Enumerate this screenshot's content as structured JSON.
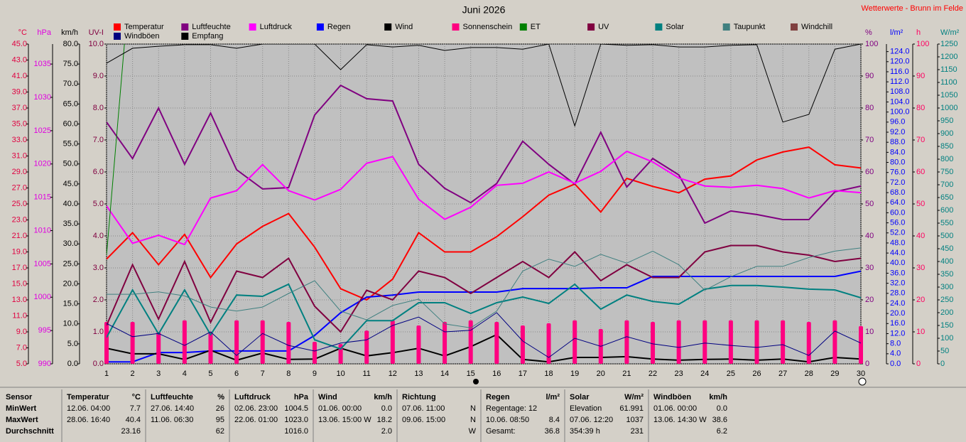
{
  "chart_data": {
    "type": "line",
    "title": "Juni 2026",
    "subtitle": "Wetterwerte - Brunn im Felde",
    "categories": [
      1,
      2,
      3,
      4,
      5,
      6,
      7,
      8,
      9,
      10,
      11,
      12,
      13,
      14,
      15,
      16,
      17,
      18,
      19,
      20,
      21,
      22,
      23,
      24,
      25,
      26,
      27,
      28,
      29,
      30
    ],
    "axes": [
      {
        "label": "°C",
        "color": "#e00040",
        "side": "left",
        "lim": [
          5,
          45
        ],
        "ticks": [
          {
            "value": 5,
            "label": "5.0"
          },
          {
            "value": 7,
            "label": "7.0"
          },
          {
            "value": 9,
            "label": "9.0"
          },
          {
            "value": 11,
            "label": "11.0"
          },
          {
            "value": 13,
            "label": "13.0"
          },
          {
            "value": 15,
            "label": "15.0"
          },
          {
            "value": 17,
            "label": "17.0"
          },
          {
            "value": 19,
            "label": "19.0"
          },
          {
            "value": 21,
            "label": "21.0"
          },
          {
            "value": 23,
            "label": "23.0"
          },
          {
            "value": 25,
            "label": "25.0"
          },
          {
            "value": 27,
            "label": "27.0"
          },
          {
            "value": 29,
            "label": "29.0"
          },
          {
            "value": 31,
            "label": "31.0"
          },
          {
            "value": 33,
            "label": "33.0"
          },
          {
            "value": 35,
            "label": "35.0"
          },
          {
            "value": 37,
            "label": "37.0"
          },
          {
            "value": 39,
            "label": "39.0"
          },
          {
            "value": 41,
            "label": "41.0"
          },
          {
            "value": 43,
            "label": "43.0"
          },
          {
            "value": 45,
            "label": "45.0"
          }
        ]
      },
      {
        "label": "hPa",
        "color": "#e000e0",
        "side": "left",
        "lim": [
          990,
          1038
        ],
        "ticks": [
          990,
          995,
          1000,
          1005,
          1010,
          1015,
          1020,
          1025,
          1030,
          1035
        ]
      },
      {
        "label": "km/h",
        "color": "#000000",
        "side": "left",
        "lim": [
          0,
          80
        ],
        "ticks": [
          {
            "value": 0,
            "label": "0.0"
          },
          {
            "value": 5,
            "label": "5.0"
          },
          {
            "value": 10,
            "label": "10.0"
          },
          {
            "value": 15,
            "label": "15.0"
          },
          {
            "value": 20,
            "label": "20.0"
          },
          {
            "value": 25,
            "label": "25.0"
          },
          {
            "value": 30,
            "label": "30.0"
          },
          {
            "value": 35,
            "label": "35.0"
          },
          {
            "value": 40,
            "label": "40.0"
          },
          {
            "value": 45,
            "label": "45.0"
          },
          {
            "value": 50,
            "label": "50.0"
          },
          {
            "value": 55,
            "label": "55.0"
          },
          {
            "value": 60,
            "label": "60.0"
          },
          {
            "value": 65,
            "label": "65.0"
          },
          {
            "value": 70,
            "label": "70.0"
          },
          {
            "value": 75,
            "label": "75.0"
          },
          {
            "value": 80,
            "label": "80.0"
          }
        ]
      },
      {
        "label": "UV-I",
        "color": "#800040",
        "side": "left",
        "grid": true,
        "lim": [
          0,
          10
        ],
        "ticks": [
          {
            "value": 0,
            "label": "0.0"
          },
          {
            "value": 1,
            "label": "1.0"
          },
          {
            "value": 2,
            "label": "2.0"
          },
          {
            "value": 3,
            "label": "3.0"
          },
          {
            "value": 4,
            "label": "4.0"
          },
          {
            "value": 5,
            "label": "5.0"
          },
          {
            "value": 6,
            "label": "6.0"
          },
          {
            "value": 7,
            "label": "7.0"
          },
          {
            "value": 8,
            "label": "8.0"
          },
          {
            "value": 9,
            "label": "9.0"
          },
          {
            "value": 10,
            "label": "10.0"
          }
        ]
      },
      {
        "label": "%",
        "color": "#800080",
        "side": "right",
        "lim": [
          0,
          100
        ],
        "ticks": [
          0,
          10,
          20,
          30,
          40,
          50,
          60,
          70,
          80,
          90,
          100
        ]
      },
      {
        "label": "l/m²",
        "color": "#0000ff",
        "side": "right",
        "lim": [
          0,
          127
        ],
        "ticks": [
          {
            "value": 0,
            "label": "0.0"
          },
          {
            "value": 4,
            "label": "4.0"
          },
          {
            "value": 8,
            "label": "8.0"
          },
          {
            "value": 12,
            "label": "12.0"
          },
          {
            "value": 16,
            "label": "16.0"
          },
          {
            "value": 20,
            "label": "20.0"
          },
          {
            "value": 24,
            "label": "24.0"
          },
          {
            "value": 28,
            "label": "28.0"
          },
          {
            "value": 32,
            "label": "32.0"
          },
          {
            "value": 36,
            "label": "36.0"
          },
          {
            "value": 40,
            "label": "40.0"
          },
          {
            "value": 44,
            "label": "44.0"
          },
          {
            "value": 48,
            "label": "48.0"
          },
          {
            "value": 52,
            "label": "52.0"
          },
          {
            "value": 56,
            "label": "56.0"
          },
          {
            "value": 60,
            "label": "60.0"
          },
          {
            "value": 64,
            "label": "64.0"
          },
          {
            "value": 68,
            "label": "68.0"
          },
          {
            "value": 72,
            "label": "72.0"
          },
          {
            "value": 76,
            "label": "76.0"
          },
          {
            "value": 80,
            "label": "80.0"
          },
          {
            "value": 84,
            "label": "84.0"
          },
          {
            "value": 88,
            "label": "88.0"
          },
          {
            "value": 92,
            "label": "92.0"
          },
          {
            "value": 96,
            "label": "96.0"
          },
          {
            "value": 100,
            "label": "100.0"
          },
          {
            "value": 104,
            "label": "104.0"
          },
          {
            "value": 108,
            "label": "108.0"
          },
          {
            "value": 112,
            "label": "112.0"
          },
          {
            "value": 116,
            "label": "116.0"
          },
          {
            "value": 120,
            "label": "120.0"
          },
          {
            "value": 124,
            "label": "124.0"
          }
        ]
      },
      {
        "label": "h",
        "color": "#ff0060",
        "side": "right",
        "lim": [
          0,
          100
        ],
        "ticks": [
          0,
          10,
          20,
          30,
          40,
          50,
          60,
          70,
          80,
          90,
          100
        ]
      },
      {
        "label": "W/m²",
        "color": "#008080",
        "side": "right",
        "lim": [
          0,
          1250
        ],
        "ticks": [
          0,
          50,
          100,
          150,
          200,
          250,
          300,
          350,
          400,
          450,
          500,
          550,
          600,
          650,
          700,
          750,
          800,
          850,
          900,
          950,
          1000,
          1050,
          1100,
          1150,
          1200,
          1250
        ]
      }
    ],
    "series": [
      {
        "name": "Temperatur",
        "color": "#ff0000",
        "axis": 0,
        "values": [
          18.1,
          21.4,
          17.4,
          21.2,
          15.8,
          20.0,
          22.2,
          23.8,
          19.6,
          14.4,
          13.0,
          15.6,
          21.4,
          19.0,
          19.0,
          20.9,
          23.4,
          26.1,
          27.5,
          24.0,
          28.2,
          27.2,
          26.4,
          28.1,
          28.5,
          30.5,
          31.5,
          32.1,
          29.9,
          29.5
        ]
      },
      {
        "name": "Luftfeuchte",
        "color": "#800080",
        "axis": 4,
        "values": [
          75.6,
          64.2,
          80.0,
          62.4,
          78.4,
          60.7,
          54.7,
          55.1,
          77.8,
          87.1,
          82.9,
          82.2,
          62.4,
          54.9,
          50.4,
          56.4,
          69.6,
          62.4,
          56.2,
          72.4,
          55.3,
          64.2,
          59.1,
          44.0,
          47.8,
          46.7,
          45.1,
          45.1,
          53.8,
          55.6
        ]
      },
      {
        "name": "Luftdruck",
        "color": "#ff00ff",
        "axis": 1,
        "values": [
          1013.7,
          1008.1,
          1009.3,
          1007.9,
          1014.9,
          1016.0,
          1019.9,
          1016.0,
          1014.6,
          1016.2,
          1020.1,
          1021.1,
          1014.7,
          1011.7,
          1013.5,
          1016.8,
          1017.1,
          1018.8,
          1017.1,
          1018.9,
          1021.9,
          1020.3,
          1017.9,
          1016.7,
          1016.5,
          1016.8,
          1016.3,
          1014.9,
          1016.0,
          1015.7
        ]
      },
      {
        "name": "Regen",
        "color": "#0000ff",
        "axis": 5,
        "values": [
          0.8,
          0.8,
          4.5,
          4.5,
          5.1,
          5.1,
          5.1,
          5.1,
          11.3,
          20.3,
          26.5,
          27.3,
          28.5,
          28.5,
          28.5,
          28.5,
          29.9,
          29.9,
          29.9,
          30.2,
          30.2,
          34.7,
          34.7,
          34.7,
          34.7,
          34.7,
          34.7,
          34.7,
          34.7,
          36.8
        ]
      },
      {
        "name": "Wind",
        "color": "#000000",
        "axis": 2,
        "values": [
          3.9,
          2.5,
          2.5,
          1.1,
          3.4,
          0.9,
          2.7,
          1.1,
          1.2,
          3.9,
          2.0,
          2.8,
          3.9,
          2.0,
          4.3,
          7.3,
          1.1,
          0.5,
          1.6,
          1.6,
          1.8,
          1.2,
          0.9,
          1.1,
          1.2,
          0.9,
          1.2,
          0.5,
          1.6,
          1.2
        ]
      },
      {
        "name": "Sonnenschein",
        "color": "#ff0080",
        "axis": 6,
        "kind": "bar",
        "values": [
          13.1,
          13.1,
          10.0,
          13.6,
          10.0,
          13.6,
          13.6,
          13.1,
          6.9,
          6.2,
          10.4,
          13.6,
          12.0,
          13.1,
          13.6,
          13.1,
          12.0,
          12.7,
          13.6,
          10.9,
          13.6,
          13.1,
          13.6,
          13.6,
          13.6,
          13.6,
          13.6,
          13.1,
          13.6,
          11.8
        ]
      },
      {
        "name": "ET",
        "color": "#008000",
        "axis": 4,
        "thin": true,
        "values": [
          34,
          130,
          null,
          null,
          null,
          null,
          null,
          null,
          null,
          null,
          null,
          null,
          null,
          null,
          null,
          null,
          null,
          null,
          null,
          null,
          null,
          null,
          null,
          null,
          null,
          null,
          null,
          null,
          null,
          null
        ]
      },
      {
        "name": "UV",
        "color": "#800040",
        "axis": 3,
        "values": [
          1.2,
          3.1,
          1.4,
          3.2,
          1.3,
          2.9,
          2.7,
          3.3,
          1.8,
          1.0,
          2.3,
          2.0,
          2.9,
          2.7,
          2.2,
          2.7,
          3.2,
          2.7,
          3.5,
          2.6,
          3.1,
          2.7,
          2.7,
          3.5,
          3.7,
          3.7,
          3.5,
          3.4,
          3.2,
          3.3
        ]
      },
      {
        "name": "Solar",
        "color": "#008080",
        "axis": 7,
        "values": [
          103,
          289,
          117,
          289,
          114,
          269,
          264,
          311,
          94,
          58,
          169,
          169,
          239,
          239,
          197,
          239,
          261,
          236,
          311,
          214,
          269,
          244,
          233,
          292,
          306,
          306,
          300,
          292,
          289,
          258
        ]
      },
      {
        "name": "Taupunkt",
        "color": "#408080",
        "axis": 0,
        "thin": true,
        "values": [
          13.7,
          13.7,
          14.0,
          13.5,
          12.1,
          11.6,
          12.1,
          13.8,
          15.4,
          11.6,
          10.5,
          12.3,
          13.1,
          10.0,
          9.5,
          11.6,
          16.6,
          18.1,
          17.2,
          18.7,
          17.6,
          19.1,
          17.4,
          14.2,
          15.9,
          17.2,
          17.2,
          18.3,
          19.1,
          19.5
        ]
      },
      {
        "name": "Windchill",
        "color": "#804040",
        "axis": 0,
        "values": [
          null,
          null,
          null,
          null,
          null,
          null,
          null,
          null,
          null,
          null,
          null,
          null,
          null,
          null,
          null,
          null,
          null,
          null,
          null,
          null,
          null,
          null,
          null,
          null,
          null,
          null,
          null,
          null,
          null,
          null
        ]
      },
      {
        "name": "Windböen",
        "color": "#000080",
        "axis": 2,
        "thin": true,
        "values": [
          10.1,
          6.8,
          7.6,
          4.6,
          8.0,
          2.1,
          7.6,
          4.6,
          3.2,
          5.2,
          6.0,
          9.6,
          11.7,
          8.0,
          8.4,
          12.8,
          5.7,
          1.6,
          6.4,
          4.4,
          6.8,
          5.0,
          4.1,
          5.2,
          4.6,
          4.1,
          4.8,
          2.1,
          8.2,
          5.2
        ]
      },
      {
        "name": "Empfang",
        "color": "#000000",
        "axis": 4,
        "thin": true,
        "values": [
          94.0,
          98.7,
          99.3,
          99.8,
          99.8,
          98.7,
          100,
          100,
          100,
          92.0,
          99.8,
          99.1,
          99.6,
          98.0,
          98.9,
          98.9,
          98.4,
          100,
          74.4,
          100,
          99.6,
          99.8,
          99.1,
          99.1,
          99.6,
          99.8,
          75.6,
          78.0,
          98.4,
          100
        ]
      }
    ]
  },
  "table": {
    "row_labels": [
      "Sensor",
      "MinWert",
      "MaxWert",
      "Durchschnitt"
    ],
    "columns": [
      {
        "name": "Temperatur",
        "unit": "°C",
        "rows": [
          [
            "12.06. 04:00",
            "7.7"
          ],
          [
            "28.06. 16:40",
            "40.4"
          ],
          [
            null,
            "23.16"
          ]
        ]
      },
      {
        "name": "Luftfeuchte",
        "unit": "%",
        "rows": [
          [
            "27.06. 14:40",
            "26"
          ],
          [
            "11.06. 06:30",
            "95"
          ],
          [
            null,
            "62"
          ]
        ]
      },
      {
        "name": "Luftdruck",
        "unit": "hPa",
        "rows": [
          [
            "02.06. 23:00",
            "1004.5"
          ],
          [
            "22.06. 01:00",
            "1023.0"
          ],
          [
            null,
            "1016.0"
          ]
        ]
      },
      {
        "name": "Wind",
        "unit": "km/h",
        "rows": [
          [
            "01.06. 00:00",
            "0.0"
          ],
          [
            "13.06. 15:00 W",
            "18.2"
          ],
          [
            null,
            "2.0"
          ]
        ]
      },
      {
        "name": "Richtung",
        "unit": null,
        "rows": [
          [
            "07.06. 11:00",
            "N"
          ],
          [
            "09.06. 15:00",
            "N"
          ],
          [
            null,
            "W"
          ]
        ]
      },
      {
        "name": "Regen",
        "unit": "l/m²",
        "rows": [
          [
            "Regentage: 12",
            null
          ],
          [
            "10.06. 08:50",
            "8.4"
          ],
          [
            "Gesamt:",
            "36.8"
          ]
        ]
      },
      {
        "name": "Solar",
        "unit": "W/m²",
        "rows": [
          [
            "Elevation",
            "61.991"
          ],
          [
            "07.06. 12:20",
            "1037"
          ],
          [
            "354:39 h",
            "231"
          ]
        ]
      },
      {
        "name": "Windböen",
        "unit": "km/h",
        "rows": [
          [
            "01.06. 00:00",
            "0.0"
          ],
          [
            "13.06. 14:30 W",
            "38.6"
          ],
          [
            null,
            "6.2"
          ]
        ]
      }
    ]
  }
}
